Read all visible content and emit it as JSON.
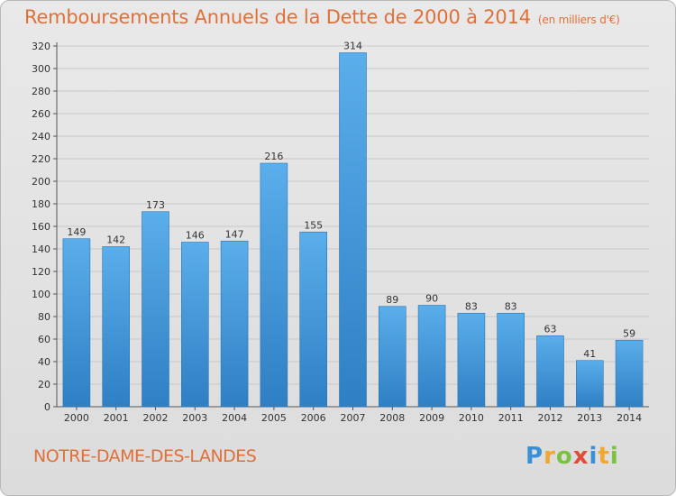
{
  "title": "Remboursements Annuels de la Dette de 2000 à 2014",
  "unit": "(en milliers d'€)",
  "commune": "NOTRE-DAME-DES-LANDES",
  "logo": "Proxiti",
  "colors": {
    "bar": "#3b8fd6",
    "bar_light": "#5aaeea",
    "title": "#e0703a",
    "grid": "#c8c8c8"
  },
  "chart_data": {
    "type": "bar",
    "title": "Remboursements Annuels de la Dette de 2000 à 2014",
    "xlabel": "",
    "ylabel": "",
    "categories": [
      "2000",
      "2001",
      "2002",
      "2003",
      "2004",
      "2005",
      "2006",
      "2007",
      "2008",
      "2009",
      "2010",
      "2011",
      "2012",
      "2013",
      "2014"
    ],
    "values": [
      149,
      142,
      173,
      146,
      147,
      216,
      155,
      314,
      89,
      90,
      83,
      83,
      63,
      41,
      59
    ],
    "ylim": [
      0,
      320
    ],
    "yticks": [
      0,
      20,
      40,
      60,
      80,
      100,
      120,
      140,
      160,
      180,
      200,
      220,
      240,
      260,
      280,
      300,
      320
    ],
    "grid": true
  }
}
